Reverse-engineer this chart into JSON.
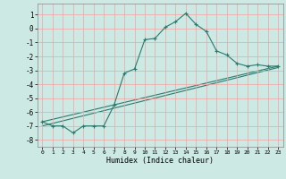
{
  "xlabel": "Humidex (Indice chaleur)",
  "xlim": [
    -0.5,
    23.5
  ],
  "ylim": [
    -8.5,
    1.8
  ],
  "yticks": [
    1,
    0,
    -1,
    -2,
    -3,
    -4,
    -5,
    -6,
    -7,
    -8
  ],
  "xticks": [
    0,
    1,
    2,
    3,
    4,
    5,
    6,
    7,
    8,
    9,
    10,
    11,
    12,
    13,
    14,
    15,
    16,
    17,
    18,
    19,
    20,
    21,
    22,
    23
  ],
  "bg_color": "#cce9e4",
  "line_color": "#2a7a6e",
  "grid_color": "#f5a0a0",
  "line1_x": [
    0,
    1,
    2,
    3,
    4,
    5,
    6,
    7,
    8,
    9,
    10,
    11,
    12,
    13,
    14,
    15,
    16,
    17,
    18,
    19,
    20,
    21,
    22,
    23
  ],
  "line1_y": [
    -6.7,
    -7.0,
    -7.0,
    -7.5,
    -7.0,
    -7.0,
    -7.0,
    -5.5,
    -3.2,
    -2.9,
    -0.8,
    -0.7,
    0.1,
    0.5,
    1.1,
    0.3,
    -0.2,
    -1.6,
    -1.9,
    -2.5,
    -2.7,
    -2.6,
    -2.7,
    -2.7
  ],
  "line2_x": [
    0,
    23
  ],
  "line2_y": [
    -6.7,
    -2.7
  ],
  "line3_x": [
    0,
    23
  ],
  "line3_y": [
    -7.0,
    -2.8
  ]
}
